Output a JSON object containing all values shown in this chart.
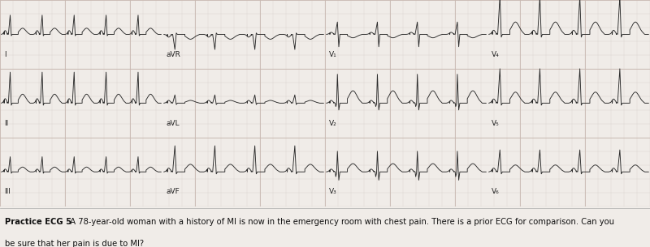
{
  "caption_bold": "Practice ECG 5",
  "caption_normal": "  A 78-year-old woman with a history of MI is now in the emergency room with chest pain. There is a prior ECG for comparison. Can you",
  "caption_line2": "be sure that her pain is due to MI?",
  "bg_color": "#f0ece8",
  "grid_minor_color": "#d8cfc8",
  "grid_major_color": "#c8b8b0",
  "ecg_color": "#2a2a2a",
  "fig_width": 8.0,
  "fig_height": 3.05,
  "dpi": 100,
  "caption_fontsize": 7.2,
  "label_fontsize": 6.5,
  "ecg_linewidth": 0.65
}
